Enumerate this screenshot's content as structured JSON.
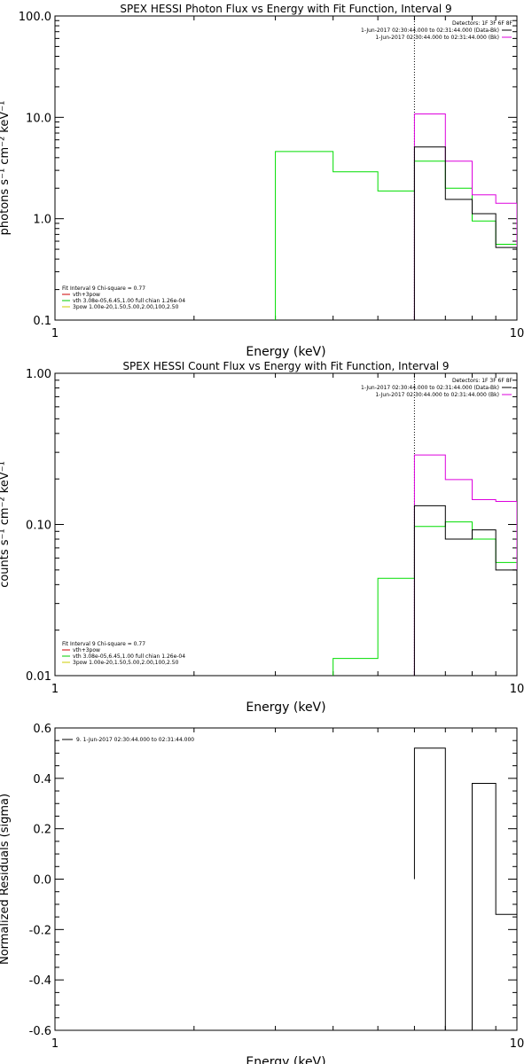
{
  "chart_data": [
    {
      "type": "line",
      "title": "SPEX HESSI Photon Flux vs Energy with Fit Function, Interval 9",
      "xlabel": "Energy (keV)",
      "ylabel": "photons s⁻¹ cm⁻² keV⁻¹",
      "xscale": "log",
      "yscale": "log",
      "xlim": [
        1,
        10
      ],
      "ylim": [
        0.1,
        100
      ],
      "x_tick_labels": [
        "1",
        "10"
      ],
      "y_tick_labels": [
        "0.1",
        "1.0",
        "10.0",
        "100.0"
      ],
      "energy_edges": [
        3.0,
        4.0,
        5.0,
        6.0,
        7.0,
        8.0,
        9.0,
        10.0
      ],
      "fit_start": 6.0,
      "series": [
        {
          "name": "1-Jun-2017 02:30:44.000 to 02:31:44.000 (Data-Bk)",
          "color": "#000000",
          "start": 6.0,
          "values": [
            5.1,
            1.55,
            1.12,
            0.52
          ]
        },
        {
          "name": "1-Jun-2017 02:30:44.000 to 02:31:44.000 (Bk)",
          "color": "#dd00dd",
          "start": 6.0,
          "values": [
            10.8,
            3.7,
            1.72,
            1.42
          ]
        },
        {
          "name": "vth+3pow",
          "color": "#00dd00",
          "start": 3.0,
          "values": [
            4.6,
            2.9,
            1.88,
            3.7,
            2.0,
            0.95,
            0.56
          ]
        }
      ],
      "detectors": "Detectors: 1F 3F 6F 8F",
      "legend_title": "Fit Interval 9   Chi-square = 0.77",
      "legend": [
        {
          "label": "vth+3pow",
          "color": "#cc0000"
        },
        {
          "label": "vth 3.08e-05,6.45,1.00  full chian 1.26e-04",
          "color": "#00cc00"
        },
        {
          "label": "3pow 1.00e-20,1.50,5.00,2.00,100,2.50",
          "color": "#cccc00"
        }
      ]
    },
    {
      "type": "line",
      "title": "SPEX HESSI Count Flux vs Energy with Fit Function, Interval 9",
      "xlabel": "Energy (keV)",
      "ylabel": "counts s⁻¹ cm⁻² keV⁻¹",
      "xscale": "log",
      "yscale": "log",
      "xlim": [
        1,
        10
      ],
      "ylim": [
        0.01,
        1.0
      ],
      "x_tick_labels": [
        "1",
        "10"
      ],
      "y_tick_labels": [
        "0.01",
        "0.10",
        "1.00"
      ],
      "energy_edges": [
        3.0,
        4.0,
        5.0,
        6.0,
        7.0,
        8.0,
        9.0,
        10.0
      ],
      "fit_start": 6.0,
      "series": [
        {
          "name": "1-Jun-2017 02:30:44.000 to 02:31:44.000 (Data-Bk)",
          "color": "#000000",
          "start": 6.0,
          "values": [
            0.133,
            0.08,
            0.092,
            0.05
          ]
        },
        {
          "name": "1-Jun-2017 02:30:44.000 to 02:31:44.000 (Bk)",
          "color": "#dd00dd",
          "start": 6.0,
          "values": [
            0.288,
            0.198,
            0.146,
            0.142
          ]
        },
        {
          "name": "vth+3pow",
          "color": "#00dd00",
          "start": 4.0,
          "values": [
            0.013,
            0.044,
            0.097,
            0.104,
            0.08,
            0.056
          ]
        }
      ],
      "detectors": "Detectors: 1F 3F 6F 8F",
      "legend_title": "Fit Interval 9   Chi-square = 0.77",
      "legend": [
        {
          "label": "vth+3pow",
          "color": "#cc0000"
        },
        {
          "label": "vth 3.08e-05,6.45,1.00  full chian 1.26e-04",
          "color": "#00cc00"
        },
        {
          "label": "3pow 1.00e-20,1.50,5.00,2.00,100,2.50",
          "color": "#cccc00"
        }
      ]
    },
    {
      "type": "line",
      "title": "",
      "xlabel": "Energy (keV)",
      "ylabel": "Normalized Residuals (sigma)",
      "xscale": "log",
      "yscale": "linear",
      "xlim": [
        1,
        10
      ],
      "ylim": [
        -0.6,
        0.6
      ],
      "x_tick_labels": [
        "1",
        "10"
      ],
      "y_tick_labels": [
        "-0.6",
        "-0.4",
        "-0.2",
        "0.0",
        "0.2",
        "0.4",
        "0.6"
      ],
      "energy_edges": [
        6.0,
        7.0,
        8.0,
        9.0,
        10.0
      ],
      "series": [
        {
          "name": "9. 1-Jun-2017 02:30:44.000 to 02:31:44.000",
          "color": "#000000",
          "start": 6.0,
          "values": [
            0.52,
            -0.6,
            0.38,
            -0.14
          ]
        }
      ],
      "legend": [
        {
          "label": "9. 1-Jun-2017 02:30:44.000 to 02:31:44.000",
          "color": "#000000"
        }
      ]
    }
  ]
}
